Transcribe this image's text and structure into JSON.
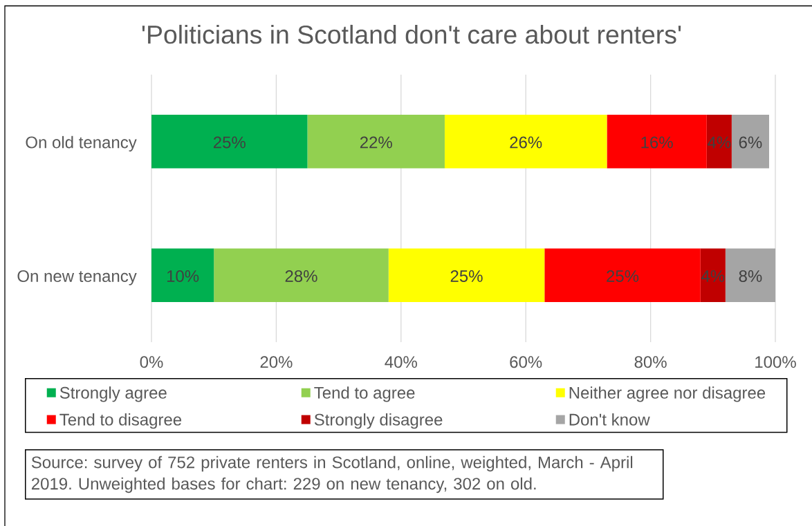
{
  "chart_data": {
    "type": "bar",
    "orientation": "horizontal",
    "stacked": true,
    "title": "'Politicians in Scotland don't care about renters'",
    "categories": [
      "On old tenancy",
      "On new tenancy"
    ],
    "series": [
      {
        "name": "Strongly agree",
        "color": "#00b050",
        "values": [
          25,
          10
        ],
        "value_labels": [
          "25%",
          "10%"
        ]
      },
      {
        "name": "Tend to agree",
        "color": "#92d050",
        "values": [
          22,
          28
        ],
        "value_labels": [
          "22%",
          "28%"
        ]
      },
      {
        "name": "Neither agree nor disagree",
        "color": "#ffff00",
        "values": [
          26,
          25
        ],
        "value_labels": [
          "26%",
          "25%"
        ]
      },
      {
        "name": "Tend to disagree",
        "color": "#ff0000",
        "values": [
          16,
          25
        ],
        "value_labels": [
          "16%",
          "25%"
        ]
      },
      {
        "name": "Strongly disagree",
        "color": "#c00000",
        "values": [
          4,
          4
        ],
        "value_labels": [
          "4%",
          "4%"
        ]
      },
      {
        "name": "Don't know",
        "color": "#a5a5a5",
        "values": [
          6,
          8
        ],
        "value_labels": [
          "6%",
          "8%"
        ]
      }
    ],
    "xlim": [
      0,
      100
    ],
    "xticks": [
      {
        "value": 0,
        "label": "0%"
      },
      {
        "value": 20,
        "label": "20%"
      },
      {
        "value": 40,
        "label": "40%"
      },
      {
        "value": 60,
        "label": "60%"
      },
      {
        "value": 80,
        "label": "80%"
      },
      {
        "value": 100,
        "label": "100%"
      }
    ],
    "grid": "x",
    "legend": "bottom",
    "annotations": [
      "Source: survey of 752 private renters in Scotland, online, weighted, March - April 2019. Unweighted bases for chart: 229 on new tenancy, 302 on old."
    ]
  }
}
